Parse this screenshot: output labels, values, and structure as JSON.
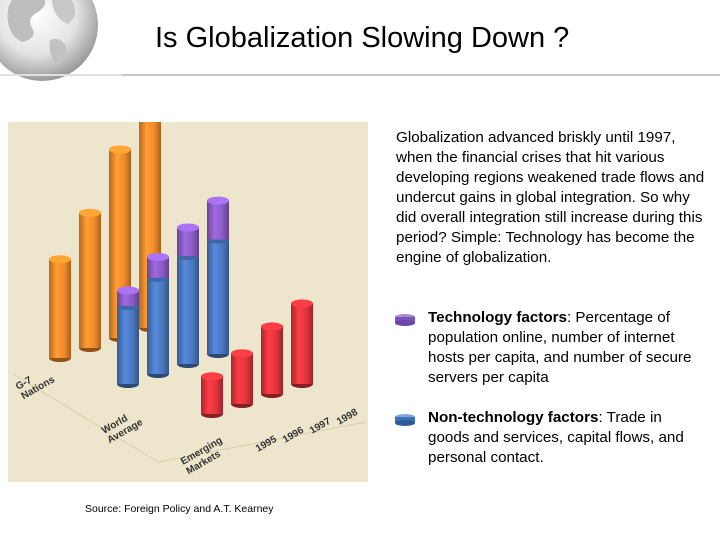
{
  "slide": {
    "title": "Is Globalization Slowing Down ?",
    "description": "Globalization advanced briskly until 1997, when the financial crises that hit various developing regions weakened trade flows and undercut gains in global integration. So why did overall integration still increase during this period? Simple: Technology has become the engine of globalization.",
    "source": "Source: Foreign Policy and A.T. Kearney"
  },
  "legend": {
    "technology": {
      "label": "Technology factors",
      "text": ": Percentage of population online, number of internet hosts per capita, and number of secure servers per capita",
      "color": "#7a55b8"
    },
    "non_technology": {
      "label": "Non-technology factors",
      "text": ": Trade in goods and services, capital flows, and personal contact.",
      "color": "#3f6fb4"
    }
  },
  "colors": {
    "g7": "#f08a2c",
    "world": "#4a78c0",
    "tech_cap": "#8a5cc4",
    "emerging": "#e0343c",
    "panel": "#ede6cc"
  },
  "chart_data": {
    "type": "bar",
    "categories": [
      "1995",
      "1996",
      "1997",
      "1998"
    ],
    "groups": [
      "G-7 Nations",
      "World Average",
      "Emerging Markets"
    ],
    "series": [
      {
        "name": "G-7 Nations",
        "values": [
          76,
          104,
          145,
          178
        ]
      },
      {
        "name": "World Average",
        "values": [
          72,
          90,
          105,
          118
        ],
        "technology_share": [
          12,
          16,
          22,
          30
        ]
      },
      {
        "name": "Emerging Markets",
        "values": [
          29,
          39,
          52,
          62
        ]
      }
    ],
    "title": "",
    "xlabel": "",
    "ylabel": "",
    "ylim": [
      0,
      200
    ],
    "grid": false,
    "legend_placement": "right"
  }
}
